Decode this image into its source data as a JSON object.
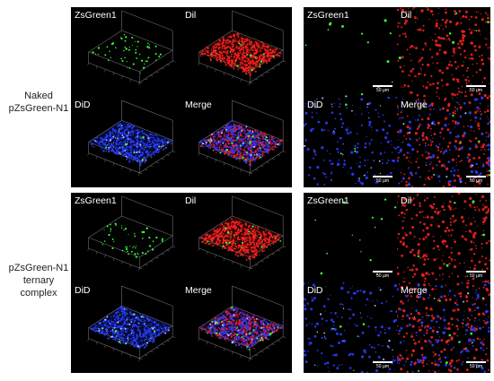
{
  "rows": [
    {
      "label_line1": "Naked",
      "label_line2": "pZsGreen-N1",
      "label_line3": ""
    },
    {
      "label_line1": "pZsGreen-N1",
      "label_line2": "ternary",
      "label_line3": "complex"
    }
  ],
  "channels": {
    "zsgreen": "ZsGreen1",
    "dil": "Dil",
    "did": "DiD",
    "merge": "Merge"
  },
  "scale_bar": "50 µm",
  "colors": {
    "zsgreen": "#3aff3a",
    "dil": "#ff2222",
    "did": "#2a3cff",
    "background": "#000000"
  }
}
